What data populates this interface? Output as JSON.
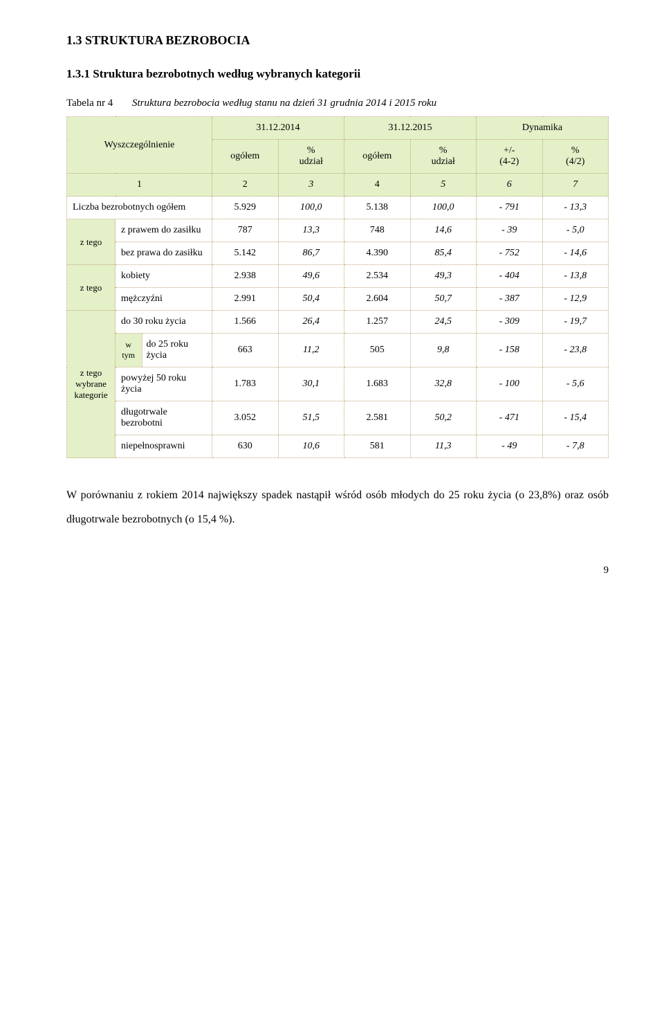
{
  "colors": {
    "page_bg": "#ffffff",
    "text": "#000000",
    "cell_border": "#bfa77a",
    "header_fill": "#e3f0c8"
  },
  "fonts": {
    "body_family": "Times New Roman",
    "body_size_pt": 12,
    "heading_size_pt": 14
  },
  "section_heading": "1.3   STRUKTURA BEZROBOCIA",
  "subsection_heading": "1.3.1 Struktura bezrobotnych według wybranych kategorii",
  "table_caption_num": "Tabela nr 4",
  "table_caption_txt": "Struktura bezrobocia według stanu na dzień 31 grudnia 2014 i 2015 roku",
  "columns": {
    "spec": "Wyszczególnienie",
    "d1": "31.12.2014",
    "d2": "31.12.2015",
    "dyn": "Dynamika",
    "ogolem": "ogółem",
    "udzial": "%\nudział",
    "delta": "+/-\n(4-2)",
    "pct": "%\n(4/2)"
  },
  "colnums": [
    "1",
    "2",
    "3",
    "4",
    "5",
    "6",
    "7"
  ],
  "total_row": {
    "label": "Liczba bezrobotnych ogółem",
    "v": [
      "5.929",
      "100,0",
      "5.138",
      "100,0",
      "- 791",
      "- 13,3"
    ]
  },
  "group_label_ztego": "z tego",
  "group_label_wybrane": "z tego\nwybrane\nkategorie",
  "group_label_wtym": "w\ntym",
  "rows_g1": [
    {
      "label": "z prawem do zasiłku",
      "v": [
        "787",
        "13,3",
        "748",
        "14,6",
        "- 39",
        "- 5,0"
      ]
    },
    {
      "label": "bez prawa do zasiłku",
      "v": [
        "5.142",
        "86,7",
        "4.390",
        "85,4",
        "- 752",
        "- 14,6"
      ]
    }
  ],
  "rows_g2": [
    {
      "label": "kobiety",
      "v": [
        "2.938",
        "49,6",
        "2.534",
        "49,3",
        "- 404",
        "- 13,8"
      ]
    },
    {
      "label": "mężczyźni",
      "v": [
        "2.991",
        "50,4",
        "2.604",
        "50,7",
        "- 387",
        "- 12,9"
      ]
    }
  ],
  "rows_g3": [
    {
      "label": "do 30 roku życia",
      "v": [
        "1.566",
        "26,4",
        "1.257",
        "24,5",
        "- 309",
        "- 19,7"
      ]
    },
    {
      "label": "do 25 roku życia",
      "v": [
        "663",
        "11,2",
        "505",
        "9,8",
        "- 158",
        "- 23,8"
      ]
    },
    {
      "label": "powyżej 50 roku życia",
      "v": [
        "1.783",
        "30,1",
        "1.683",
        "32,8",
        "- 100",
        "- 5,6"
      ]
    },
    {
      "label": "długotrwale bezrobotni",
      "v": [
        "3.052",
        "51,5",
        "2.581",
        "50,2",
        "- 471",
        "- 15,4"
      ]
    },
    {
      "label": "niepełnosprawni",
      "v": [
        "630",
        "10,6",
        "581",
        "11,3",
        "- 49",
        "- 7,8"
      ]
    }
  ],
  "footnote": "W porównaniu z rokiem 2014 największy spadek nastąpił wśród osób młodych do 25 roku życia (o 23,8%) oraz osób długotrwale bezrobotnych (o 15,4 %).",
  "page_number": "9"
}
